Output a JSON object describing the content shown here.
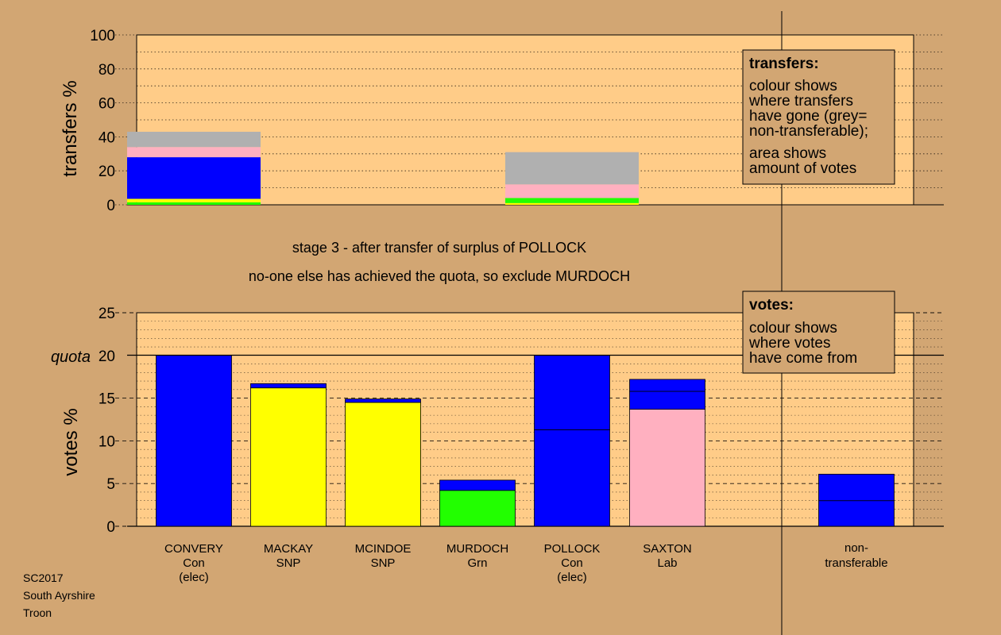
{
  "footer": [
    "SC2017",
    "South Ayrshire",
    "Troon"
  ],
  "stage_text": {
    "line1": "stage 3 - after transfer of surplus of POLLOCK",
    "line2": "no-one else has achieved the quota, so exclude MURDOCH"
  },
  "transfers_box": {
    "title": "transfers:",
    "lines": [
      "colour shows",
      "where transfers",
      "have gone (grey=",
      "non-transferable);",
      "area shows",
      "amount of votes"
    ]
  },
  "votes_box": {
    "title": "votes:",
    "lines": [
      "colour shows",
      "where votes",
      "have come from"
    ]
  },
  "colors": {
    "con": "#0000ff",
    "snp": "#ffff00",
    "grn": "#22ff00",
    "lab": "#ffb0c0",
    "nontransferable": "#b0b0b0",
    "panel": "#ffcc88",
    "background": "#d2a673"
  },
  "chart_data": [
    {
      "type": "bar",
      "ylabel": "transfers %",
      "ylim": [
        0,
        100
      ],
      "yticks": [
        0,
        20,
        40,
        60,
        80,
        100
      ],
      "grid": true,
      "stacked_transfers": [
        {
          "slot": 0,
          "segments": [
            {
              "party": "grn",
              "from": 0,
              "to": 1.5
            },
            {
              "party": "snp",
              "from": 1.5,
              "to": 3.5
            },
            {
              "party": "con",
              "from": 3.5,
              "to": 28
            },
            {
              "party": "lab",
              "from": 28,
              "to": 34
            },
            {
              "party": "nontransferable",
              "from": 34,
              "to": 43
            }
          ]
        },
        {
          "slot": 4,
          "segments": [
            {
              "party": "snp",
              "from": 0,
              "to": 1
            },
            {
              "party": "grn",
              "from": 1,
              "to": 4
            },
            {
              "party": "lab",
              "from": 4,
              "to": 12
            },
            {
              "party": "nontransferable",
              "from": 12,
              "to": 31
            }
          ]
        }
      ]
    },
    {
      "type": "bar",
      "ylabel": "votes %",
      "ylim": [
        0,
        25
      ],
      "yticks": [
        0,
        5,
        10,
        15,
        20,
        25
      ],
      "quota": 20,
      "quota_label": "quota",
      "grid": true,
      "candidates": [
        {
          "name": "CONVERY",
          "party": "Con",
          "note": "(elec)",
          "slot": 0,
          "segments": [
            {
              "party": "con",
              "from": 0,
              "to": 20
            }
          ]
        },
        {
          "name": "MACKAY",
          "party": "SNP",
          "note": "",
          "slot": 1,
          "segments": [
            {
              "party": "snp",
              "from": 0,
              "to": 16.2
            },
            {
              "party": "con",
              "from": 16.2,
              "to": 16.7
            }
          ]
        },
        {
          "name": "MCINDOE",
          "party": "SNP",
          "note": "",
          "slot": 2,
          "segments": [
            {
              "party": "snp",
              "from": 0,
              "to": 14.5
            },
            {
              "party": "con",
              "from": 14.5,
              "to": 14.9
            }
          ]
        },
        {
          "name": "MURDOCH",
          "party": "Grn",
          "note": "",
          "slot": 3,
          "segments": [
            {
              "party": "grn",
              "from": 0,
              "to": 4.2
            },
            {
              "party": "con",
              "from": 4.2,
              "to": 5.4
            }
          ]
        },
        {
          "name": "POLLOCK",
          "party": "Con",
          "note": "(elec)",
          "slot": 4,
          "segments": [
            {
              "party": "con",
              "from": 0,
              "to": 11.3
            },
            {
              "party": "con",
              "from": 11.3,
              "to": 20
            }
          ]
        },
        {
          "name": "SAXTON",
          "party": "Lab",
          "note": "",
          "slot": 5,
          "segments": [
            {
              "party": "lab",
              "from": 0,
              "to": 13.7
            },
            {
              "party": "con",
              "from": 13.7,
              "to": 15.8
            },
            {
              "party": "con",
              "from": 15.8,
              "to": 17.2
            }
          ]
        }
      ],
      "nontransferable": {
        "label_lines": [
          "non-",
          "transferable"
        ],
        "segments": [
          {
            "party": "con",
            "from": 0,
            "to": 3.0
          },
          {
            "party": "con",
            "from": 3.0,
            "to": 6.1
          }
        ]
      }
    }
  ]
}
